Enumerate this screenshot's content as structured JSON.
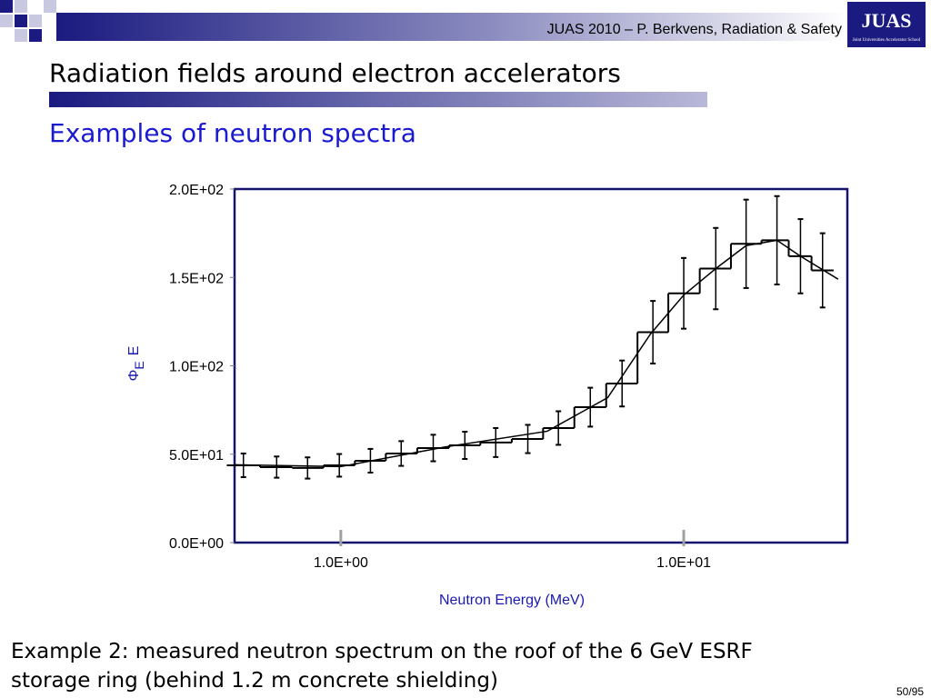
{
  "header": {
    "text": "JUAS 2010 – P. Berkvens, Radiation & Safety",
    "logo": "JUAS",
    "logo_subtext": "Joint Universities Accelerator School"
  },
  "title": "Radiation fields around electron accelerators",
  "subtitle": "Examples of neutron spectra",
  "chart_data": {
    "type": "step",
    "xlabel": "Neutron Energy (MeV)",
    "ylabel": [
      "Φ",
      "E",
      "E"
    ],
    "xscale": "log",
    "xlim": [
      0.49,
      30
    ],
    "xticks": [
      {
        "value": 1,
        "label": "1.0E+00"
      },
      {
        "value": 10,
        "label": "1.0E+01"
      }
    ],
    "ylim": [
      0,
      200
    ],
    "yticks": [
      {
        "value": 0,
        "label": "0.0E+00"
      },
      {
        "value": 50,
        "label": "5.0E+01"
      },
      {
        "value": 100,
        "label": "1.0E+02"
      },
      {
        "value": 150,
        "label": "1.5E+02"
      },
      {
        "value": 200,
        "label": "2.0E+02"
      }
    ],
    "frame_color": "#14146e",
    "series": [
      {
        "color": "#000000",
        "x": [
          0.52,
          0.65,
          0.8,
          0.99,
          1.22,
          1.5,
          1.86,
          2.3,
          2.83,
          3.51,
          4.31,
          5.34,
          6.61,
          8.13,
          10.0,
          12.4,
          15.2,
          18.7,
          21.9,
          25.4
        ],
        "values": [
          43.7,
          42.7,
          42.2,
          43.7,
          46.3,
          50.4,
          53.5,
          55,
          56.6,
          58.6,
          64.8,
          76.6,
          90,
          119,
          141,
          155,
          169,
          171,
          162,
          154
        ],
        "errors": [
          6.7,
          6,
          6,
          6.4,
          6.7,
          7,
          7.5,
          7.7,
          8.2,
          8,
          9.5,
          11,
          13,
          17.7,
          20,
          23,
          25,
          25,
          21,
          21
        ]
      },
      {
        "color": "#000000",
        "x": [
          0.49,
          1,
          2,
          4,
          6,
          8,
          10,
          12.4,
          15.2,
          18.7,
          21.9,
          28.2
        ],
        "values": [
          44,
          43,
          54,
          63,
          82,
          118,
          140,
          155,
          168,
          171,
          162,
          149
        ]
      }
    ]
  },
  "caption": [
    "Example 2: measured neutron spectrum on the roof of the 6 GeV ESRF",
    "storage ring (behind 1.2 m concrete shielding)"
  ],
  "page_number": "50/95"
}
